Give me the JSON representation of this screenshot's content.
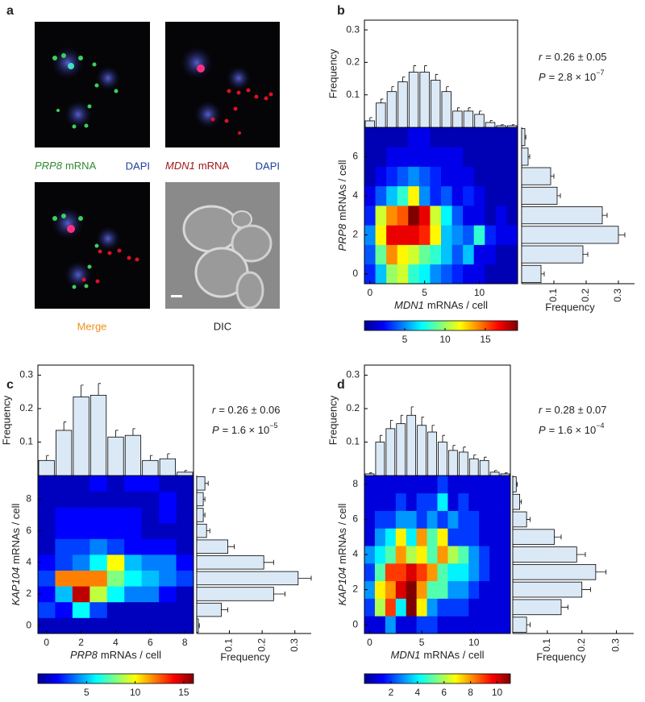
{
  "panel_a": {
    "label": "a",
    "images": [
      {
        "gene": "PRP8",
        "text": "mRNA",
        "stain": "DAPI"
      },
      {
        "gene": "MDN1",
        "text": "mRNA",
        "stain": "DAPI"
      },
      {
        "caption": "Merge"
      },
      {
        "caption": "DIC"
      }
    ]
  },
  "chart_data": [
    {
      "type": "heatmap",
      "panel_label": "b",
      "x_gene": "MDN1",
      "x_label": "mRNAs / cell",
      "y_gene": "PRP8",
      "y_label": "mRNAs / cell",
      "xlim": [
        -0.5,
        13.5
      ],
      "xticks": [
        0,
        5,
        10
      ],
      "ylim": [
        -0.5,
        7.5
      ],
      "yticks": [
        0,
        2,
        4,
        6
      ],
      "matrix": [
        [
          3,
          6,
          10,
          11,
          8,
          7,
          5,
          4,
          3,
          2,
          2,
          1,
          1,
          1
        ],
        [
          4,
          9,
          14,
          12,
          11,
          9,
          8,
          6,
          4,
          6,
          2,
          2,
          1,
          1
        ],
        [
          5,
          12,
          17,
          17,
          17,
          16,
          12,
          6,
          5,
          4,
          8,
          3,
          2,
          2
        ],
        [
          3,
          11,
          14,
          15,
          19,
          17,
          11,
          7,
          4,
          2,
          2,
          1,
          2,
          1
        ],
        [
          2,
          4,
          6,
          8,
          12,
          5,
          3,
          4,
          2,
          3,
          2,
          1,
          1,
          1
        ],
        [
          1,
          2,
          3,
          4,
          5,
          4,
          3,
          2,
          2,
          2,
          1,
          1,
          1,
          1
        ],
        [
          1,
          1,
          2,
          2,
          2,
          2,
          2,
          2,
          2,
          1,
          1,
          1,
          1,
          1
        ],
        [
          1,
          1,
          1,
          1,
          2,
          2,
          1,
          1,
          1,
          1,
          1,
          1,
          1,
          1
        ]
      ],
      "colorbar": {
        "lim": [
          0,
          19
        ],
        "ticks": [
          5,
          10,
          15
        ]
      },
      "top_hist": {
        "ylabel": "Frequency",
        "ylim": [
          0,
          0.33
        ],
        "yticks": [
          0.1,
          0.2,
          0.3
        ],
        "values": [
          0.02,
          0.075,
          0.11,
          0.14,
          0.17,
          0.17,
          0.145,
          0.11,
          0.05,
          0.05,
          0.04,
          0.015,
          0.005,
          0.005
        ],
        "errors": [
          0.01,
          0.012,
          0.015,
          0.015,
          0.02,
          0.02,
          0.018,
          0.015,
          0.01,
          0.01,
          0.01,
          0.006,
          0.003,
          0.003
        ]
      },
      "right_hist": {
        "xlabel": "Frequency",
        "xlim": [
          0,
          0.35
        ],
        "xticks": [
          0.1,
          0.2,
          0.3
        ],
        "values": [
          0.06,
          0.19,
          0.3,
          0.25,
          0.11,
          0.09,
          0.02,
          0.01
        ],
        "errors": [
          0.01,
          0.015,
          0.02,
          0.015,
          0.01,
          0.01,
          0.005,
          0.003
        ]
      },
      "stats": {
        "r": "r",
        "r_text": "= 0.26 ± 0.05",
        "p": "P",
        "p_text": "= 2.8 × 10",
        "p_exp": "−7"
      }
    },
    {
      "type": "heatmap",
      "panel_label": "c",
      "x_gene": "PRP8",
      "x_label": "mRNAs / cell",
      "y_gene": "KAP104",
      "y_label": "mRNAs / cell",
      "xlim": [
        -0.5,
        8.5
      ],
      "xticks": [
        0,
        2,
        4,
        6,
        8
      ],
      "ylim": [
        -0.5,
        9.5
      ],
      "yticks": [
        0,
        2,
        4,
        6,
        8
      ],
      "matrix": [
        [
          1,
          1,
          1,
          1,
          1,
          1,
          1,
          1,
          1
        ],
        [
          3,
          2,
          6,
          3,
          1,
          1,
          1,
          1,
          1
        ],
        [
          2,
          5,
          15,
          9,
          6,
          4,
          4,
          2,
          1
        ],
        [
          3,
          12,
          12,
          12,
          8,
          6,
          5,
          4,
          3
        ],
        [
          2,
          3,
          4,
          6,
          10,
          5,
          4,
          4,
          2
        ],
        [
          1,
          3,
          3,
          4,
          3,
          2,
          2,
          2,
          1
        ],
        [
          1,
          2,
          2,
          2,
          2,
          2,
          1,
          1,
          1
        ],
        [
          1,
          2,
          2,
          2,
          2,
          2,
          1,
          2,
          1
        ],
        [
          1,
          1,
          1,
          1,
          1,
          1,
          1,
          2,
          1
        ],
        [
          1,
          1,
          1,
          2,
          1,
          2,
          2,
          1,
          1
        ]
      ],
      "colorbar": {
        "lim": [
          0,
          16
        ],
        "ticks": [
          5,
          10,
          15
        ]
      },
      "top_hist": {
        "ylabel": "Frequency",
        "ylim": [
          0,
          0.33
        ],
        "yticks": [
          0.1,
          0.2,
          0.3
        ],
        "values": [
          0.045,
          0.135,
          0.235,
          0.24,
          0.115,
          0.12,
          0.045,
          0.05,
          0.01
        ],
        "errors": [
          0.015,
          0.025,
          0.035,
          0.035,
          0.02,
          0.02,
          0.015,
          0.015,
          0.005
        ]
      },
      "right_hist": {
        "xlabel": "Frequency",
        "xlim": [
          0,
          0.35
        ],
        "xticks": [
          0.1,
          0.2,
          0.3
        ],
        "values": [
          0.005,
          0.075,
          0.235,
          0.31,
          0.205,
          0.095,
          0.03,
          0.02,
          0.02,
          0.025
        ],
        "errors": [
          0.003,
          0.02,
          0.035,
          0.04,
          0.03,
          0.02,
          0.01,
          0.005,
          0.005,
          0.01
        ]
      },
      "stats": {
        "r": "r",
        "r_text": "= 0.26 ± 0.06",
        "p": "P",
        "p_text": "= 1.6 × 10",
        "p_exp": "−5"
      }
    },
    {
      "type": "heatmap",
      "panel_label": "d",
      "x_gene": "MDN1",
      "x_label": "mRNAs / cell",
      "y_gene": "KAP104",
      "y_label": "mRNAs / cell",
      "xlim": [
        -0.5,
        13.5
      ],
      "xticks": [
        0,
        5,
        10
      ],
      "ylim": [
        -0.5,
        8.5
      ],
      "yticks": [
        0,
        2,
        4,
        6,
        8
      ],
      "matrix": [
        [
          1,
          1,
          3,
          1,
          1,
          2,
          2,
          1,
          1,
          1,
          1,
          1,
          1,
          1
        ],
        [
          2,
          6,
          9,
          4,
          11,
          7,
          3,
          2,
          2,
          2,
          1,
          1,
          1,
          1
        ],
        [
          3,
          7,
          8,
          10,
          11,
          8,
          5,
          5,
          3,
          3,
          2,
          1,
          1,
          1
        ],
        [
          2,
          5,
          9,
          9,
          10,
          9,
          8,
          5,
          4,
          4,
          3,
          2,
          1,
          1
        ],
        [
          3,
          4,
          5,
          8,
          6,
          7,
          5,
          8,
          6,
          5,
          3,
          2,
          1,
          1
        ],
        [
          1,
          3,
          4,
          7,
          4,
          8,
          5,
          7,
          2,
          2,
          2,
          1,
          1,
          1
        ],
        [
          1,
          2,
          2,
          3,
          3,
          2,
          3,
          2,
          3,
          2,
          2,
          1,
          1,
          1
        ],
        [
          1,
          1,
          1,
          2,
          1,
          2,
          2,
          4,
          1,
          2,
          1,
          1,
          1,
          1
        ],
        [
          1,
          1,
          1,
          1,
          1,
          1,
          1,
          2,
          1,
          1,
          1,
          1,
          1,
          1
        ]
      ],
      "colorbar": {
        "lim": [
          0,
          11
        ],
        "ticks": [
          2,
          4,
          6,
          8,
          10
        ]
      },
      "top_hist": {
        "ylabel": "Frequency",
        "ylim": [
          0,
          0.33
        ],
        "yticks": [
          0.1,
          0.2,
          0.3
        ],
        "values": [
          0.005,
          0.1,
          0.14,
          0.155,
          0.18,
          0.15,
          0.13,
          0.1,
          0.075,
          0.07,
          0.05,
          0.045,
          0.01,
          0.005
        ],
        "errors": [
          0.003,
          0.02,
          0.025,
          0.025,
          0.025,
          0.025,
          0.02,
          0.02,
          0.015,
          0.015,
          0.012,
          0.01,
          0.005,
          0.003
        ]
      },
      "right_hist": {
        "xlabel": "Frequency",
        "xlim": [
          0,
          0.35
        ],
        "xticks": [
          0.1,
          0.2,
          0.3
        ],
        "values": [
          0.04,
          0.14,
          0.2,
          0.24,
          0.185,
          0.12,
          0.04,
          0.02,
          0.01
        ],
        "errors": [
          0.01,
          0.02,
          0.025,
          0.03,
          0.025,
          0.02,
          0.01,
          0.005,
          0.003
        ]
      },
      "stats": {
        "r": "r",
        "r_text": "= 0.28 ± 0.07",
        "p": "P",
        "p_text": "= 1.6 × 10",
        "p_exp": "−4"
      }
    }
  ]
}
